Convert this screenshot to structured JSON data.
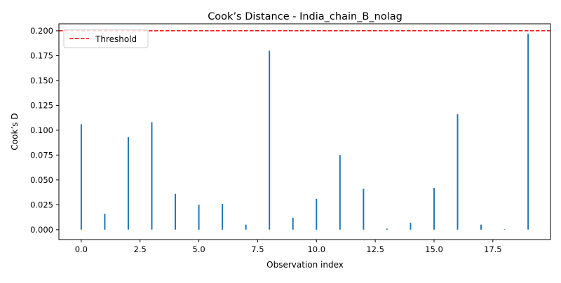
{
  "chart_data": {
    "type": "bar",
    "title": "Cook’s Distance - India_chain_B_nolag",
    "xlabel": "Observation index",
    "ylabel": "Cook’s D",
    "x": [
      0,
      1,
      2,
      3,
      4,
      5,
      6,
      7,
      8,
      9,
      10,
      11,
      12,
      13,
      14,
      15,
      16,
      17,
      18,
      19
    ],
    "values": [
      0.106,
      0.016,
      0.093,
      0.108,
      0.036,
      0.025,
      0.026,
      0.005,
      0.18,
      0.012,
      0.031,
      0.075,
      0.041,
      0.001,
      0.007,
      0.042,
      0.116,
      0.005,
      0.0005,
      0.197
    ],
    "xlim": [
      -0.95,
      19.95
    ],
    "ylim": [
      -0.01,
      0.207
    ],
    "xticks": [
      0.0,
      2.5,
      5.0,
      7.5,
      10.0,
      12.5,
      15.0,
      17.5
    ],
    "xtick_labels": [
      "0.0",
      "2.5",
      "5.0",
      "7.5",
      "10.0",
      "12.5",
      "15.0",
      "17.5"
    ],
    "yticks": [
      0.0,
      0.025,
      0.05,
      0.075,
      0.1,
      0.125,
      0.15,
      0.175,
      0.2
    ],
    "ytick_labels": [
      "0.000",
      "0.025",
      "0.050",
      "0.075",
      "0.100",
      "0.125",
      "0.150",
      "0.175",
      "0.200"
    ],
    "threshold": {
      "value": 0.2,
      "label": "Threshold",
      "style": "dashed",
      "color": "#ff0000"
    },
    "bar_color": "#1f77b4",
    "legend": {
      "placement": "top-left",
      "entries": [
        "Threshold"
      ]
    },
    "grid": false
  }
}
